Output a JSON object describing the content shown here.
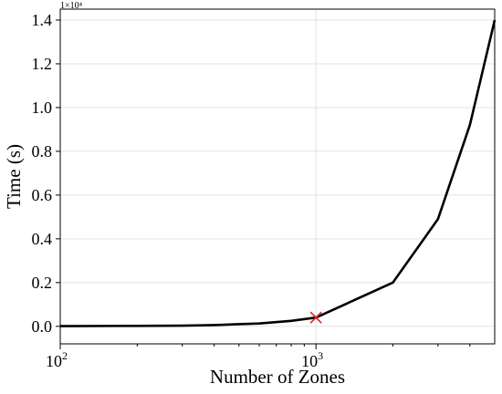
{
  "chart_data": {
    "type": "line",
    "title": "",
    "xlabel": "Number of Zones",
    "ylabel": "Time (s)",
    "x_scale": "log",
    "xlim": [
      100,
      5000
    ],
    "ylim": [
      -0.08,
      1.45
    ],
    "y_multiplier": "1×10⁴",
    "x_ticks": [
      {
        "value": 100,
        "base": "10",
        "exp": "2"
      },
      {
        "value": 1000,
        "base": "10",
        "exp": "3"
      }
    ],
    "y_ticks": [
      {
        "value": 0.0,
        "label": "0.0"
      },
      {
        "value": 0.2,
        "label": "0.2"
      },
      {
        "value": 0.4,
        "label": "0.4"
      },
      {
        "value": 0.6,
        "label": "0.6"
      },
      {
        "value": 0.8,
        "label": "0.8"
      },
      {
        "value": 1.0,
        "label": "1.0"
      },
      {
        "value": 1.2,
        "label": "1.2"
      },
      {
        "value": 1.4,
        "label": "1.4"
      }
    ],
    "grid": true,
    "series": [
      {
        "color": "#000000",
        "x": [
          100,
          200,
          300,
          400,
          600,
          800,
          1000,
          2000,
          3000,
          4000,
          5000
        ],
        "y": [
          0.001,
          0.002,
          0.003,
          0.006,
          0.013,
          0.025,
          0.04,
          0.2,
          0.49,
          0.92,
          1.4
        ]
      }
    ],
    "marker": {
      "x": 1000,
      "y": 0.04,
      "symbol": "x",
      "color": "#d62728"
    }
  }
}
